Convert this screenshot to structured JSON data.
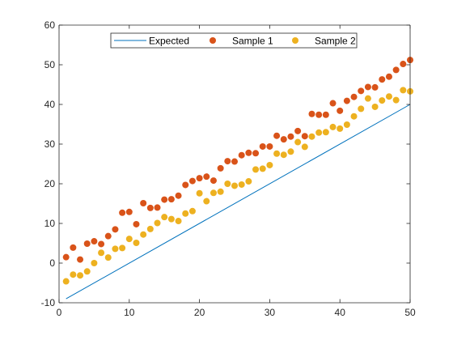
{
  "chart_data": {
    "type": "scatter",
    "title": "",
    "xlabel": "",
    "ylabel": "",
    "xlim": [
      0,
      50
    ],
    "ylim": [
      -10,
      60
    ],
    "xticks": [
      0,
      10,
      20,
      30,
      40,
      50
    ],
    "yticks": [
      -10,
      0,
      10,
      20,
      30,
      40,
      50,
      60
    ],
    "grid": false,
    "box": true,
    "legend_position": "top-center",
    "series": [
      {
        "name": "Expected",
        "kind": "line",
        "color": "#0072bd",
        "x": [
          1,
          50
        ],
        "y": [
          -9,
          40
        ]
      },
      {
        "name": "Sample 1",
        "kind": "scatter",
        "color": "#d95319",
        "x": [
          1,
          2,
          3,
          4,
          5,
          6,
          7,
          8,
          9,
          10,
          11,
          12,
          13,
          14,
          15,
          16,
          17,
          18,
          19,
          20,
          21,
          22,
          23,
          24,
          25,
          26,
          27,
          28,
          29,
          30,
          31,
          32,
          33,
          34,
          35,
          36,
          37,
          38,
          39,
          40,
          41,
          42,
          43,
          44,
          45,
          46,
          47,
          48,
          49,
          50
        ],
        "y": [
          1.5,
          3.9,
          0.9,
          4.9,
          5.5,
          4.8,
          6.8,
          8.5,
          12.7,
          12.9,
          9.8,
          15.1,
          13.9,
          14.0,
          16.0,
          16.1,
          17.0,
          19.7,
          20.7,
          21.4,
          21.8,
          20.8,
          23.9,
          25.7,
          25.6,
          27.2,
          27.8,
          27.7,
          29.4,
          29.4,
          32.1,
          31.2,
          31.9,
          33.3,
          32.0,
          37.6,
          37.4,
          37.4,
          40.3,
          38.4,
          40.9,
          41.9,
          43.4,
          44.4,
          44.3,
          46.3,
          47.0,
          48.7,
          50.2,
          51.2
        ]
      },
      {
        "name": "Sample 2",
        "kind": "scatter",
        "color": "#edb120",
        "x": [
          1,
          2,
          3,
          4,
          5,
          6,
          7,
          8,
          9,
          10,
          11,
          12,
          13,
          14,
          15,
          16,
          17,
          18,
          19,
          20,
          21,
          22,
          23,
          24,
          25,
          26,
          27,
          28,
          29,
          30,
          31,
          32,
          33,
          34,
          35,
          36,
          37,
          38,
          39,
          40,
          41,
          42,
          43,
          44,
          45,
          46,
          47,
          48,
          49,
          50
        ],
        "y": [
          -4.6,
          -2.9,
          -3.1,
          -2.1,
          0.0,
          2.6,
          1.4,
          3.6,
          3.8,
          6.1,
          5.1,
          7.2,
          8.6,
          10.1,
          11.6,
          11.1,
          10.6,
          12.5,
          13.1,
          17.6,
          15.6,
          17.7,
          18.0,
          20.0,
          19.5,
          19.8,
          20.6,
          23.6,
          23.8,
          24.7,
          27.6,
          27.3,
          28.1,
          30.5,
          29.3,
          31.9,
          32.9,
          33.0,
          34.3,
          33.9,
          34.9,
          37.0,
          38.9,
          41.5,
          39.4,
          41.0,
          42.0,
          41.1,
          43.6,
          43.3
        ]
      }
    ]
  }
}
